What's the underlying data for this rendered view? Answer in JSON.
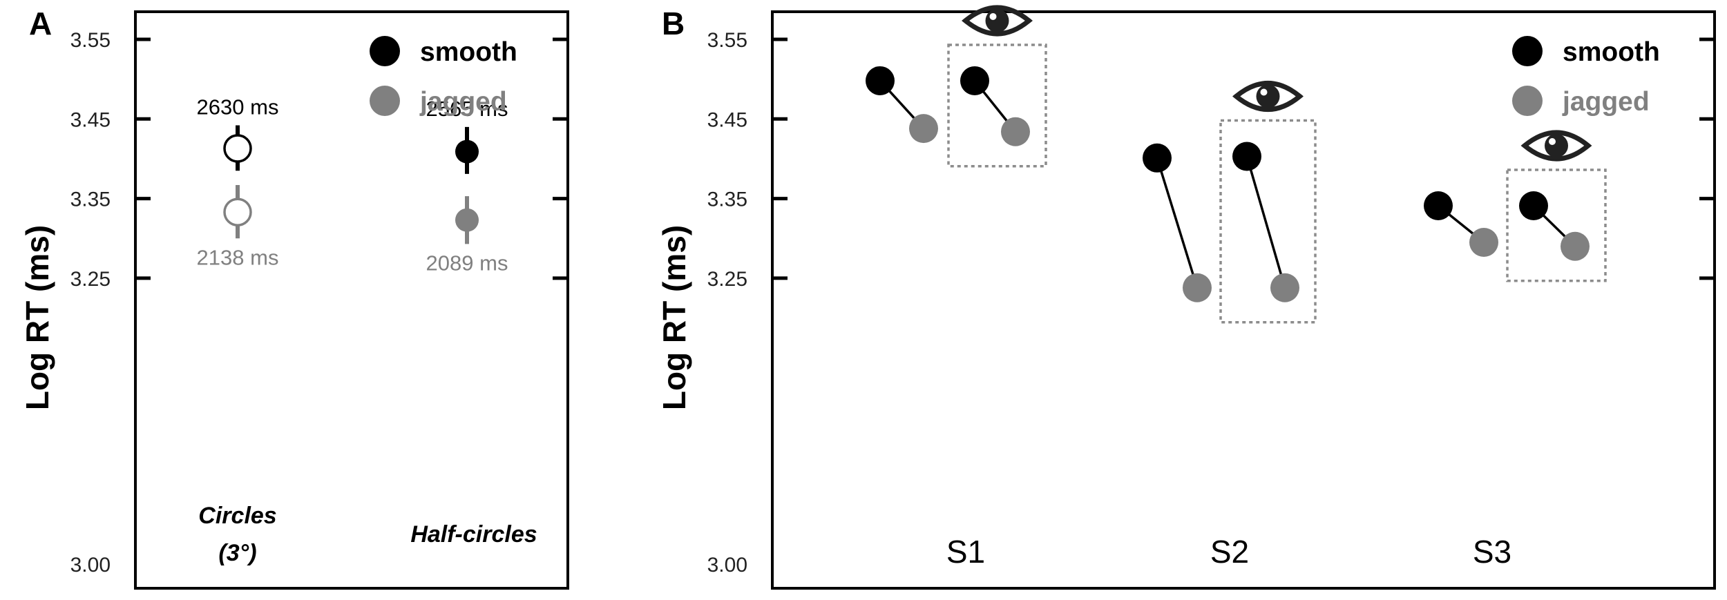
{
  "colors": {
    "smooth": "#000000",
    "jagged": "#808080",
    "frame": "#000000",
    "box": "#8c8c8c",
    "eye": "#222222"
  },
  "chart_data": [
    {
      "panel_label": "A",
      "type": "scatter",
      "ylabel": "Log RT (ms)",
      "yticks": [
        "3.55",
        "3.45",
        "3.35",
        "3.25",
        "3.00"
      ],
      "ylim": [
        3.0,
        3.55
      ],
      "legend": {
        "placement": "top-right",
        "items": [
          "smooth",
          "jagged"
        ]
      },
      "categories": [
        "Circles (3°)",
        "Half-circles"
      ],
      "category_labels": [
        [
          "Circles",
          "(3°)"
        ],
        [
          "Half-circles"
        ]
      ],
      "series": [
        {
          "name": "smooth",
          "points": [
            {
              "category": "Circles (3°)",
              "y": 3.413,
              "err_low": 3.385,
              "err_high": 3.442,
              "fill": "open",
              "label": "2630 ms"
            },
            {
              "category": "Half-circles",
              "y": 3.409,
              "err_low": 3.381,
              "err_high": 3.44,
              "fill": "filled",
              "label": "2565 ms"
            }
          ]
        },
        {
          "name": "jagged",
          "points": [
            {
              "category": "Circles (3°)",
              "y": 3.333,
              "err_low": 3.3,
              "err_high": 3.367,
              "fill": "open",
              "label": "2138 ms"
            },
            {
              "category": "Half-circles",
              "y": 3.323,
              "err_low": 3.293,
              "err_high": 3.353,
              "fill": "filled",
              "label": "2089 ms"
            }
          ]
        }
      ]
    },
    {
      "panel_label": "B",
      "type": "line",
      "ylabel": "Log RT (ms)",
      "yticks": [
        "3.55",
        "3.45",
        "3.35",
        "3.25",
        "3.00"
      ],
      "ylim": [
        3.0,
        3.55
      ],
      "legend": {
        "placement": "top-right",
        "items": [
          "smooth",
          "jagged"
        ]
      },
      "subjects": [
        "S1",
        "S2",
        "S3"
      ],
      "pairs": [
        {
          "subject": "S1",
          "condition": "all",
          "smooth": 3.498,
          "jagged": 3.438
        },
        {
          "subject": "S1",
          "condition": "eye",
          "smooth": 3.498,
          "jagged": 3.434
        },
        {
          "subject": "S2",
          "condition": "all",
          "smooth": 3.401,
          "jagged": 3.238
        },
        {
          "subject": "S2",
          "condition": "eye",
          "smooth": 3.403,
          "jagged": 3.238
        },
        {
          "subject": "S3",
          "condition": "all",
          "smooth": 3.341,
          "jagged": 3.295
        },
        {
          "subject": "S3",
          "condition": "eye",
          "smooth": 3.341,
          "jagged": 3.29
        }
      ],
      "eye_icon": "eye-icon"
    }
  ]
}
